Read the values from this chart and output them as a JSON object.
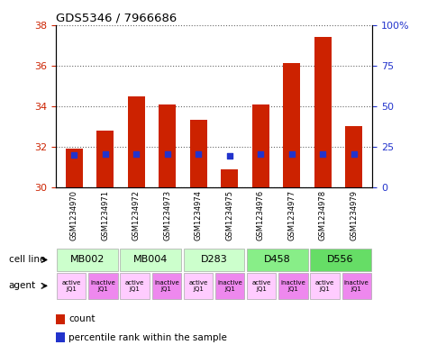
{
  "title": "GDS5346 / 7966686",
  "samples": [
    "GSM1234970",
    "GSM1234971",
    "GSM1234972",
    "GSM1234973",
    "GSM1234974",
    "GSM1234975",
    "GSM1234976",
    "GSM1234977",
    "GSM1234978",
    "GSM1234979"
  ],
  "bar_values": [
    31.9,
    32.8,
    34.5,
    34.1,
    33.35,
    30.9,
    34.1,
    36.1,
    37.4,
    33.0
  ],
  "bar_bottom": 30.0,
  "blue_dot_values": [
    31.6,
    31.65,
    31.65,
    31.65,
    31.65,
    31.55,
    31.65,
    31.65,
    31.65,
    31.65
  ],
  "ylim_left": [
    30,
    38
  ],
  "ylim_right": [
    0,
    100
  ],
  "yticks_left": [
    30,
    32,
    34,
    36,
    38
  ],
  "yticks_right": [
    0,
    25,
    50,
    75,
    100
  ],
  "bar_color": "#cc2200",
  "dot_color": "#2233cc",
  "cell_lines": [
    {
      "label": "MB002",
      "cols": [
        0,
        1
      ],
      "color": "#ccffcc"
    },
    {
      "label": "MB004",
      "cols": [
        2,
        3
      ],
      "color": "#ccffcc"
    },
    {
      "label": "D283",
      "cols": [
        4,
        5
      ],
      "color": "#ccffcc"
    },
    {
      "label": "D458",
      "cols": [
        6,
        7
      ],
      "color": "#88ee88"
    },
    {
      "label": "D556",
      "cols": [
        8,
        9
      ],
      "color": "#66dd66"
    }
  ],
  "agents": [
    {
      "label": "active\nJQ1",
      "col": 0,
      "color": "#ffccff"
    },
    {
      "label": "inactive\nJQ1",
      "col": 1,
      "color": "#ee88ee"
    },
    {
      "label": "active\nJQ1",
      "col": 2,
      "color": "#ffccff"
    },
    {
      "label": "inactive\nJQ1",
      "col": 3,
      "color": "#ee88ee"
    },
    {
      "label": "active\nJQ1",
      "col": 4,
      "color": "#ffccff"
    },
    {
      "label": "inactive\nJQ1",
      "col": 5,
      "color": "#ee88ee"
    },
    {
      "label": "active\nJQ1",
      "col": 6,
      "color": "#ffccff"
    },
    {
      "label": "inactive\nJQ1",
      "col": 7,
      "color": "#ee88ee"
    },
    {
      "label": "active\nJQ1",
      "col": 8,
      "color": "#ffccff"
    },
    {
      "label": "inactive\nJQ1",
      "col": 9,
      "color": "#ee88ee"
    }
  ],
  "bar_width": 0.55,
  "background_color": "#ffffff"
}
